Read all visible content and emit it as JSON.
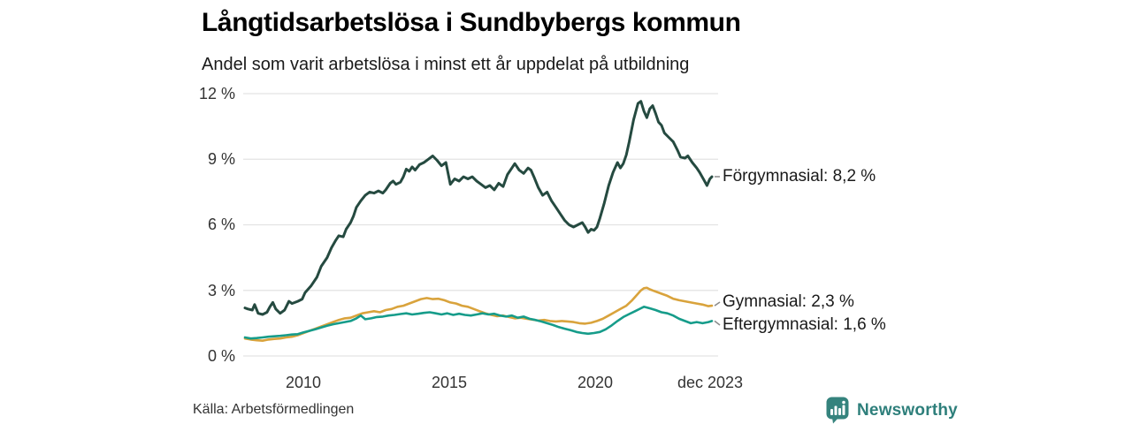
{
  "title": "Långtidsarbetslösa i Sundbybergs kommun",
  "subtitle": "Andel som varit arbetslösa i minst ett år uppdelat på utbildning",
  "source": "Källa: Arbetsförmedlingen",
  "branding": {
    "name": "Newsworthy",
    "icon": "newsworthy-bars-icon",
    "color": "#2e7f7b"
  },
  "colors": {
    "forgymnasial": "#254a40",
    "gymnasial": "#d9a33c",
    "eftergymnasial": "#169c8a",
    "gridline": "#e3e3e3",
    "leader": "#8a8a8a"
  },
  "chart_data": {
    "type": "line",
    "title": "Långtidsarbetslösa i Sundbybergs kommun",
    "subtitle": "Andel som varit arbetslösa i minst ett år uppdelat på utbildning",
    "xlabel": "",
    "ylabel": "",
    "xlim": [
      2008.0,
      2023.92
    ],
    "ylim": [
      0,
      12
    ],
    "grid": "horizontal",
    "legend_position": "right-end-labels",
    "y_ticks": [
      {
        "value": 12,
        "label": "12 %"
      },
      {
        "value": 9,
        "label": "9 %"
      },
      {
        "value": 6,
        "label": "6 %"
      },
      {
        "value": 3,
        "label": "3 %"
      },
      {
        "value": 0,
        "label": "0 %"
      }
    ],
    "x_ticks": [
      {
        "value": 2010,
        "label": "2010"
      },
      {
        "value": 2015,
        "label": "2015"
      },
      {
        "value": 2020,
        "label": "2020"
      },
      {
        "value": 2023.92,
        "label": "dec 2023"
      }
    ],
    "series": [
      {
        "name": "Förgymnasial",
        "end_label": "Förgymnasial: 8,2 %",
        "end_value": 8.2,
        "color": "#254a40",
        "points": [
          [
            2008.0,
            2.2
          ],
          [
            2008.1,
            2.15
          ],
          [
            2008.25,
            2.1
          ],
          [
            2008.33,
            2.35
          ],
          [
            2008.45,
            1.95
          ],
          [
            2008.6,
            1.9
          ],
          [
            2008.75,
            2.0
          ],
          [
            2008.85,
            2.25
          ],
          [
            2008.95,
            2.45
          ],
          [
            2009.05,
            2.15
          ],
          [
            2009.2,
            1.95
          ],
          [
            2009.35,
            2.1
          ],
          [
            2009.5,
            2.5
          ],
          [
            2009.6,
            2.4
          ],
          [
            2009.7,
            2.45
          ],
          [
            2009.8,
            2.5
          ],
          [
            2009.95,
            2.6
          ],
          [
            2010.05,
            2.9
          ],
          [
            2010.25,
            3.2
          ],
          [
            2010.45,
            3.6
          ],
          [
            2010.6,
            4.1
          ],
          [
            2010.8,
            4.5
          ],
          [
            2010.95,
            4.95
          ],
          [
            2011.1,
            5.3
          ],
          [
            2011.2,
            5.5
          ],
          [
            2011.35,
            5.45
          ],
          [
            2011.45,
            5.8
          ],
          [
            2011.6,
            6.1
          ],
          [
            2011.7,
            6.4
          ],
          [
            2011.8,
            6.8
          ],
          [
            2011.95,
            7.1
          ],
          [
            2012.1,
            7.35
          ],
          [
            2012.25,
            7.5
          ],
          [
            2012.4,
            7.45
          ],
          [
            2012.55,
            7.55
          ],
          [
            2012.7,
            7.45
          ],
          [
            2012.8,
            7.6
          ],
          [
            2012.95,
            7.9
          ],
          [
            2013.05,
            8.0
          ],
          [
            2013.15,
            7.85
          ],
          [
            2013.3,
            7.95
          ],
          [
            2013.4,
            8.2
          ],
          [
            2013.5,
            8.55
          ],
          [
            2013.6,
            8.45
          ],
          [
            2013.7,
            8.65
          ],
          [
            2013.8,
            8.5
          ],
          [
            2013.95,
            8.75
          ],
          [
            2014.1,
            8.85
          ],
          [
            2014.25,
            9.0
          ],
          [
            2014.4,
            9.15
          ],
          [
            2014.55,
            8.95
          ],
          [
            2014.7,
            8.7
          ],
          [
            2014.85,
            8.85
          ],
          [
            2015.0,
            7.85
          ],
          [
            2015.15,
            8.1
          ],
          [
            2015.3,
            8.0
          ],
          [
            2015.45,
            8.2
          ],
          [
            2015.6,
            8.1
          ],
          [
            2015.75,
            8.2
          ],
          [
            2015.9,
            8.0
          ],
          [
            2016.05,
            7.85
          ],
          [
            2016.2,
            7.7
          ],
          [
            2016.35,
            7.8
          ],
          [
            2016.5,
            7.6
          ],
          [
            2016.65,
            7.9
          ],
          [
            2016.8,
            7.75
          ],
          [
            2016.95,
            8.3
          ],
          [
            2017.1,
            8.6
          ],
          [
            2017.2,
            8.8
          ],
          [
            2017.35,
            8.5
          ],
          [
            2017.5,
            8.35
          ],
          [
            2017.65,
            8.6
          ],
          [
            2017.75,
            8.5
          ],
          [
            2017.85,
            8.2
          ],
          [
            2018.0,
            7.7
          ],
          [
            2018.15,
            7.35
          ],
          [
            2018.3,
            7.5
          ],
          [
            2018.45,
            7.1
          ],
          [
            2018.6,
            6.8
          ],
          [
            2018.75,
            6.5
          ],
          [
            2018.9,
            6.2
          ],
          [
            2019.05,
            6.0
          ],
          [
            2019.2,
            5.9
          ],
          [
            2019.35,
            6.0
          ],
          [
            2019.5,
            6.1
          ],
          [
            2019.6,
            5.9
          ],
          [
            2019.7,
            5.65
          ],
          [
            2019.8,
            5.8
          ],
          [
            2019.9,
            5.75
          ],
          [
            2020.0,
            5.9
          ],
          [
            2020.1,
            6.3
          ],
          [
            2020.25,
            7.0
          ],
          [
            2020.4,
            7.8
          ],
          [
            2020.55,
            8.4
          ],
          [
            2020.7,
            8.85
          ],
          [
            2020.8,
            8.6
          ],
          [
            2020.9,
            8.8
          ],
          [
            2021.0,
            9.2
          ],
          [
            2021.1,
            9.8
          ],
          [
            2021.25,
            10.8
          ],
          [
            2021.4,
            11.55
          ],
          [
            2021.5,
            11.65
          ],
          [
            2021.6,
            11.2
          ],
          [
            2021.7,
            10.9
          ],
          [
            2021.8,
            11.3
          ],
          [
            2021.9,
            11.45
          ],
          [
            2022.0,
            11.1
          ],
          [
            2022.1,
            10.7
          ],
          [
            2022.2,
            10.55
          ],
          [
            2022.3,
            10.2
          ],
          [
            2022.45,
            10.0
          ],
          [
            2022.6,
            9.8
          ],
          [
            2022.75,
            9.4
          ],
          [
            2022.85,
            9.1
          ],
          [
            2023.0,
            9.05
          ],
          [
            2023.1,
            9.15
          ],
          [
            2023.25,
            8.85
          ],
          [
            2023.4,
            8.6
          ],
          [
            2023.5,
            8.4
          ],
          [
            2023.65,
            8.05
          ],
          [
            2023.75,
            7.8
          ],
          [
            2023.85,
            8.1
          ],
          [
            2023.92,
            8.2
          ]
        ]
      },
      {
        "name": "Gymnasial",
        "end_label": "Gymnasial: 2,3 %",
        "end_value": 2.3,
        "color": "#d9a33c",
        "points": [
          [
            2008.0,
            0.8
          ],
          [
            2008.2,
            0.75
          ],
          [
            2008.4,
            0.72
          ],
          [
            2008.6,
            0.7
          ],
          [
            2008.8,
            0.75
          ],
          [
            2009.0,
            0.78
          ],
          [
            2009.2,
            0.8
          ],
          [
            2009.4,
            0.85
          ],
          [
            2009.6,
            0.88
          ],
          [
            2009.8,
            0.95
          ],
          [
            2010.0,
            1.05
          ],
          [
            2010.2,
            1.15
          ],
          [
            2010.4,
            1.25
          ],
          [
            2010.6,
            1.35
          ],
          [
            2010.8,
            1.45
          ],
          [
            2011.0,
            1.55
          ],
          [
            2011.2,
            1.65
          ],
          [
            2011.4,
            1.72
          ],
          [
            2011.6,
            1.75
          ],
          [
            2011.8,
            1.85
          ],
          [
            2012.0,
            1.95
          ],
          [
            2012.2,
            2.0
          ],
          [
            2012.4,
            2.05
          ],
          [
            2012.6,
            2.0
          ],
          [
            2012.8,
            2.1
          ],
          [
            2013.0,
            2.15
          ],
          [
            2013.2,
            2.25
          ],
          [
            2013.4,
            2.3
          ],
          [
            2013.6,
            2.4
          ],
          [
            2013.8,
            2.5
          ],
          [
            2014.0,
            2.6
          ],
          [
            2014.2,
            2.65
          ],
          [
            2014.4,
            2.6
          ],
          [
            2014.6,
            2.62
          ],
          [
            2014.8,
            2.55
          ],
          [
            2015.0,
            2.45
          ],
          [
            2015.2,
            2.4
          ],
          [
            2015.4,
            2.3
          ],
          [
            2015.6,
            2.25
          ],
          [
            2015.8,
            2.15
          ],
          [
            2016.0,
            2.05
          ],
          [
            2016.2,
            1.95
          ],
          [
            2016.4,
            1.88
          ],
          [
            2016.6,
            1.82
          ],
          [
            2016.8,
            1.85
          ],
          [
            2017.0,
            1.78
          ],
          [
            2017.2,
            1.72
          ],
          [
            2017.4,
            1.75
          ],
          [
            2017.6,
            1.7
          ],
          [
            2017.8,
            1.66
          ],
          [
            2018.0,
            1.62
          ],
          [
            2018.2,
            1.65
          ],
          [
            2018.4,
            1.6
          ],
          [
            2018.6,
            1.58
          ],
          [
            2018.8,
            1.6
          ],
          [
            2019.0,
            1.58
          ],
          [
            2019.2,
            1.55
          ],
          [
            2019.4,
            1.5
          ],
          [
            2019.6,
            1.48
          ],
          [
            2019.8,
            1.52
          ],
          [
            2020.0,
            1.6
          ],
          [
            2020.2,
            1.7
          ],
          [
            2020.4,
            1.85
          ],
          [
            2020.6,
            2.0
          ],
          [
            2020.8,
            2.15
          ],
          [
            2021.0,
            2.3
          ],
          [
            2021.2,
            2.55
          ],
          [
            2021.4,
            2.85
          ],
          [
            2021.5,
            3.0
          ],
          [
            2021.6,
            3.1
          ],
          [
            2021.7,
            3.12
          ],
          [
            2021.8,
            3.05
          ],
          [
            2021.9,
            3.0
          ],
          [
            2022.0,
            2.95
          ],
          [
            2022.2,
            2.85
          ],
          [
            2022.4,
            2.75
          ],
          [
            2022.6,
            2.62
          ],
          [
            2022.8,
            2.55
          ],
          [
            2023.0,
            2.5
          ],
          [
            2023.2,
            2.45
          ],
          [
            2023.4,
            2.4
          ],
          [
            2023.6,
            2.35
          ],
          [
            2023.8,
            2.28
          ],
          [
            2023.92,
            2.3
          ]
        ]
      },
      {
        "name": "Eftergymnasial",
        "end_label": "Eftergymnasial: 1,6 %",
        "end_value": 1.6,
        "color": "#169c8a",
        "points": [
          [
            2008.0,
            0.85
          ],
          [
            2008.2,
            0.8
          ],
          [
            2008.4,
            0.82
          ],
          [
            2008.6,
            0.85
          ],
          [
            2008.8,
            0.88
          ],
          [
            2009.0,
            0.9
          ],
          [
            2009.2,
            0.92
          ],
          [
            2009.4,
            0.95
          ],
          [
            2009.6,
            0.98
          ],
          [
            2009.8,
            1.0
          ],
          [
            2010.0,
            1.08
          ],
          [
            2010.2,
            1.15
          ],
          [
            2010.4,
            1.22
          ],
          [
            2010.6,
            1.3
          ],
          [
            2010.8,
            1.38
          ],
          [
            2011.0,
            1.45
          ],
          [
            2011.2,
            1.5
          ],
          [
            2011.4,
            1.55
          ],
          [
            2011.6,
            1.6
          ],
          [
            2011.8,
            1.72
          ],
          [
            2011.95,
            1.85
          ],
          [
            2012.1,
            1.68
          ],
          [
            2012.3,
            1.72
          ],
          [
            2012.5,
            1.78
          ],
          [
            2012.7,
            1.8
          ],
          [
            2012.9,
            1.85
          ],
          [
            2013.1,
            1.88
          ],
          [
            2013.3,
            1.92
          ],
          [
            2013.5,
            1.95
          ],
          [
            2013.7,
            1.9
          ],
          [
            2013.9,
            1.93
          ],
          [
            2014.1,
            1.97
          ],
          [
            2014.3,
            2.0
          ],
          [
            2014.5,
            1.95
          ],
          [
            2014.7,
            1.9
          ],
          [
            2014.9,
            1.95
          ],
          [
            2015.1,
            1.88
          ],
          [
            2015.3,
            1.93
          ],
          [
            2015.5,
            1.88
          ],
          [
            2015.7,
            1.85
          ],
          [
            2015.9,
            1.9
          ],
          [
            2016.1,
            1.95
          ],
          [
            2016.3,
            1.9
          ],
          [
            2016.5,
            1.93
          ],
          [
            2016.7,
            1.85
          ],
          [
            2016.9,
            1.8
          ],
          [
            2017.1,
            1.85
          ],
          [
            2017.3,
            1.75
          ],
          [
            2017.5,
            1.8
          ],
          [
            2017.7,
            1.7
          ],
          [
            2017.9,
            1.65
          ],
          [
            2018.1,
            1.58
          ],
          [
            2018.3,
            1.5
          ],
          [
            2018.5,
            1.42
          ],
          [
            2018.7,
            1.32
          ],
          [
            2018.9,
            1.25
          ],
          [
            2019.1,
            1.18
          ],
          [
            2019.3,
            1.1
          ],
          [
            2019.5,
            1.05
          ],
          [
            2019.7,
            1.02
          ],
          [
            2019.9,
            1.05
          ],
          [
            2020.1,
            1.1
          ],
          [
            2020.3,
            1.22
          ],
          [
            2020.5,
            1.4
          ],
          [
            2020.7,
            1.6
          ],
          [
            2020.9,
            1.78
          ],
          [
            2021.1,
            1.92
          ],
          [
            2021.3,
            2.05
          ],
          [
            2021.5,
            2.18
          ],
          [
            2021.6,
            2.25
          ],
          [
            2021.8,
            2.18
          ],
          [
            2022.0,
            2.1
          ],
          [
            2022.2,
            2.0
          ],
          [
            2022.4,
            1.95
          ],
          [
            2022.6,
            1.85
          ],
          [
            2022.8,
            1.7
          ],
          [
            2023.0,
            1.6
          ],
          [
            2023.2,
            1.5
          ],
          [
            2023.4,
            1.55
          ],
          [
            2023.6,
            1.5
          ],
          [
            2023.8,
            1.55
          ],
          [
            2023.92,
            1.6
          ]
        ]
      }
    ]
  }
}
